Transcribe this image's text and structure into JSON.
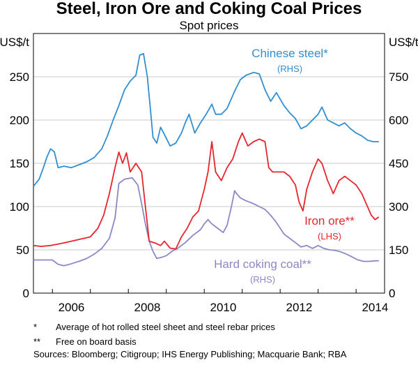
{
  "title": "Steel, Iron Ore and Coking Coal Prices",
  "subtitle": "Spot prices",
  "footnotes": [
    {
      "marker": "*",
      "text": "Average of hot rolled steel sheet and steel rebar prices"
    },
    {
      "marker": "**",
      "text": "Free on board basis"
    }
  ],
  "sources": "Sources:  Bloomberg; Citigroup; IHS Energy Publishing; Macquarie Bank; RBA",
  "chart_data": {
    "type": "line",
    "title": "Steel, Iron Ore and Coking Coal Prices",
    "subtitle": "Spot prices",
    "y_left": {
      "unit_label": "US$/t",
      "ylim": [
        0,
        300
      ],
      "ticks": [
        0,
        50,
        100,
        150,
        200,
        250
      ]
    },
    "y_right": {
      "unit_label": "US$/t",
      "ylim": [
        0,
        900
      ],
      "ticks": [
        0,
        150,
        300,
        450,
        600,
        750
      ]
    },
    "xlim": [
      2005.5,
      2014.75
    ],
    "x_ticks": [
      2006,
      2008,
      2010,
      2012,
      2014
    ],
    "grid": "horizontal",
    "series": [
      {
        "name": "Chinese steel*",
        "axis_note": "(RHS)",
        "axis": "right",
        "color": "#2f8fd0",
        "points": [
          [
            2005.5,
            370
          ],
          [
            2005.65,
            395
          ],
          [
            2005.75,
            430
          ],
          [
            2005.85,
            470
          ],
          [
            2005.95,
            500
          ],
          [
            2006.05,
            490
          ],
          [
            2006.15,
            435
          ],
          [
            2006.3,
            440
          ],
          [
            2006.5,
            435
          ],
          [
            2006.7,
            445
          ],
          [
            2006.9,
            455
          ],
          [
            2007.1,
            470
          ],
          [
            2007.3,
            500
          ],
          [
            2007.45,
            545
          ],
          [
            2007.6,
            600
          ],
          [
            2007.75,
            650
          ],
          [
            2007.9,
            705
          ],
          [
            2008.05,
            735
          ],
          [
            2008.2,
            755
          ],
          [
            2008.3,
            825
          ],
          [
            2008.4,
            830
          ],
          [
            2008.5,
            750
          ],
          [
            2008.58,
            640
          ],
          [
            2008.65,
            540
          ],
          [
            2008.75,
            520
          ],
          [
            2008.85,
            575
          ],
          [
            2008.95,
            550
          ],
          [
            2009.1,
            510
          ],
          [
            2009.25,
            520
          ],
          [
            2009.4,
            555
          ],
          [
            2009.5,
            590
          ],
          [
            2009.6,
            620
          ],
          [
            2009.75,
            555
          ],
          [
            2009.9,
            590
          ],
          [
            2010.05,
            620
          ],
          [
            2010.2,
            655
          ],
          [
            2010.3,
            620
          ],
          [
            2010.45,
            620
          ],
          [
            2010.6,
            640
          ],
          [
            2010.8,
            700
          ],
          [
            2010.95,
            740
          ],
          [
            2011.1,
            755
          ],
          [
            2011.3,
            765
          ],
          [
            2011.45,
            760
          ],
          [
            2011.6,
            705
          ],
          [
            2011.75,
            665
          ],
          [
            2011.9,
            695
          ],
          [
            2012.1,
            650
          ],
          [
            2012.25,
            625
          ],
          [
            2012.4,
            605
          ],
          [
            2012.55,
            570
          ],
          [
            2012.7,
            580
          ],
          [
            2012.85,
            600
          ],
          [
            2013.0,
            620
          ],
          [
            2013.1,
            645
          ],
          [
            2013.25,
            600
          ],
          [
            2013.4,
            590
          ],
          [
            2013.55,
            580
          ],
          [
            2013.7,
            590
          ],
          [
            2013.85,
            570
          ],
          [
            2014.0,
            555
          ],
          [
            2014.15,
            545
          ],
          [
            2014.3,
            530
          ],
          [
            2014.45,
            525
          ],
          [
            2014.6,
            525
          ]
        ]
      },
      {
        "name": "Iron ore**",
        "axis_note": "(LHS)",
        "axis": "left",
        "color": "#e8252a",
        "points": [
          [
            2005.5,
            55
          ],
          [
            2005.7,
            54
          ],
          [
            2005.95,
            55
          ],
          [
            2006.2,
            57
          ],
          [
            2006.5,
            60
          ],
          [
            2006.8,
            63
          ],
          [
            2007.0,
            65
          ],
          [
            2007.2,
            75
          ],
          [
            2007.35,
            90
          ],
          [
            2007.5,
            115
          ],
          [
            2007.65,
            145
          ],
          [
            2007.75,
            163
          ],
          [
            2007.85,
            150
          ],
          [
            2007.95,
            162
          ],
          [
            2008.05,
            140
          ],
          [
            2008.2,
            150
          ],
          [
            2008.35,
            140
          ],
          [
            2008.45,
            100
          ],
          [
            2008.55,
            60
          ],
          [
            2008.7,
            58
          ],
          [
            2008.85,
            55
          ],
          [
            2008.95,
            60
          ],
          [
            2009.1,
            52
          ],
          [
            2009.25,
            51
          ],
          [
            2009.4,
            65
          ],
          [
            2009.55,
            75
          ],
          [
            2009.7,
            88
          ],
          [
            2009.85,
            95
          ],
          [
            2010.0,
            120
          ],
          [
            2010.1,
            140
          ],
          [
            2010.2,
            175
          ],
          [
            2010.3,
            140
          ],
          [
            2010.45,
            130
          ],
          [
            2010.6,
            145
          ],
          [
            2010.75,
            155
          ],
          [
            2010.9,
            175
          ],
          [
            2011.0,
            185
          ],
          [
            2011.15,
            170
          ],
          [
            2011.3,
            175
          ],
          [
            2011.45,
            178
          ],
          [
            2011.6,
            175
          ],
          [
            2011.7,
            145
          ],
          [
            2011.8,
            140
          ],
          [
            2011.95,
            140
          ],
          [
            2012.1,
            140
          ],
          [
            2012.25,
            135
          ],
          [
            2012.4,
            125
          ],
          [
            2012.5,
            105
          ],
          [
            2012.6,
            95
          ],
          [
            2012.7,
            120
          ],
          [
            2012.85,
            140
          ],
          [
            2013.0,
            155
          ],
          [
            2013.1,
            150
          ],
          [
            2013.25,
            130
          ],
          [
            2013.4,
            115
          ],
          [
            2013.55,
            130
          ],
          [
            2013.7,
            135
          ],
          [
            2013.85,
            130
          ],
          [
            2014.0,
            125
          ],
          [
            2014.15,
            115
          ],
          [
            2014.3,
            100
          ],
          [
            2014.4,
            90
          ],
          [
            2014.5,
            85
          ],
          [
            2014.6,
            88
          ]
        ]
      },
      {
        "name": "Hard coking coal**",
        "axis_note": "(RHS)",
        "axis": "right",
        "color": "#8b88c6",
        "points": [
          [
            2005.5,
            115
          ],
          [
            2005.9,
            115
          ],
          [
            2006.0,
            115
          ],
          [
            2006.15,
            100
          ],
          [
            2006.3,
            95
          ],
          [
            2006.45,
            100
          ],
          [
            2006.7,
            110
          ],
          [
            2006.9,
            120
          ],
          [
            2007.1,
            135
          ],
          [
            2007.3,
            155
          ],
          [
            2007.5,
            190
          ],
          [
            2007.65,
            260
          ],
          [
            2007.75,
            380
          ],
          [
            2007.9,
            395
          ],
          [
            2008.1,
            400
          ],
          [
            2008.25,
            375
          ],
          [
            2008.35,
            310
          ],
          [
            2008.45,
            240
          ],
          [
            2008.55,
            180
          ],
          [
            2008.65,
            145
          ],
          [
            2008.75,
            120
          ],
          [
            2008.9,
            125
          ],
          [
            2009.0,
            130
          ],
          [
            2009.15,
            145
          ],
          [
            2009.3,
            155
          ],
          [
            2009.5,
            175
          ],
          [
            2009.7,
            200
          ],
          [
            2009.9,
            220
          ],
          [
            2010.0,
            240
          ],
          [
            2010.1,
            255
          ],
          [
            2010.2,
            240
          ],
          [
            2010.35,
            225
          ],
          [
            2010.5,
            210
          ],
          [
            2010.6,
            235
          ],
          [
            2010.7,
            290
          ],
          [
            2010.8,
            355
          ],
          [
            2010.85,
            345
          ],
          [
            2010.95,
            330
          ],
          [
            2011.1,
            320
          ],
          [
            2011.3,
            310
          ],
          [
            2011.45,
            300
          ],
          [
            2011.6,
            290
          ],
          [
            2011.75,
            270
          ],
          [
            2011.9,
            245
          ],
          [
            2012.0,
            225
          ],
          [
            2012.1,
            205
          ],
          [
            2012.25,
            190
          ],
          [
            2012.4,
            175
          ],
          [
            2012.55,
            160
          ],
          [
            2012.7,
            165
          ],
          [
            2012.85,
            155
          ],
          [
            2013.0,
            165
          ],
          [
            2013.15,
            155
          ],
          [
            2013.3,
            150
          ],
          [
            2013.45,
            148
          ],
          [
            2013.6,
            143
          ],
          [
            2013.75,
            135
          ],
          [
            2013.9,
            125
          ],
          [
            2014.05,
            115
          ],
          [
            2014.2,
            110
          ],
          [
            2014.35,
            110
          ],
          [
            2014.5,
            112
          ],
          [
            2014.6,
            112
          ]
        ]
      }
    ]
  }
}
